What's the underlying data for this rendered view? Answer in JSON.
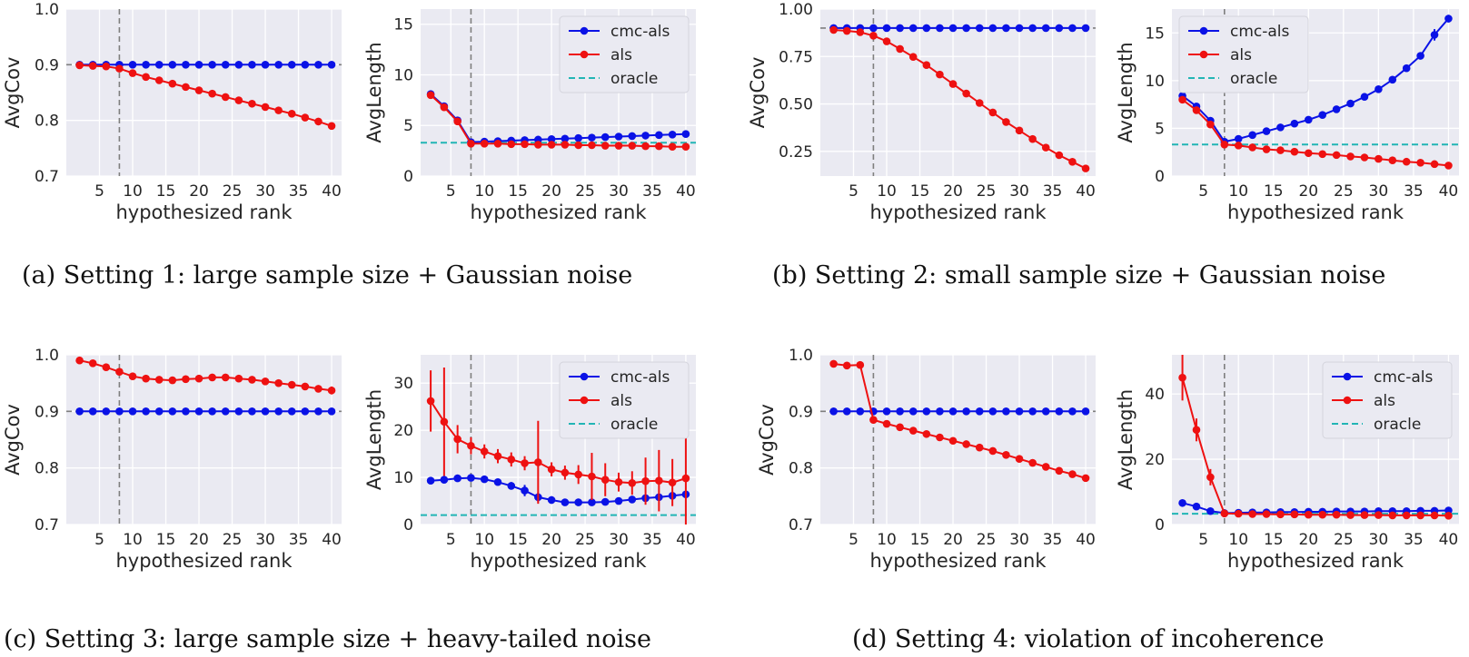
{
  "colors": {
    "cmc": "#0a12e6",
    "als": "#ee1111",
    "oracle": "#22b5b5",
    "panel": "#eaeaf2",
    "grid": "#ffffff",
    "ref": "#7f7f7f"
  },
  "captions": [
    "(a) Setting 1: large sample size + Gaussian noise",
    "(b) Setting 2: small sample size + Gaussian noise",
    "(c) Setting 3: large sample size + heavy-tailed noise",
    "(d) Setting 4: violation of incoherence"
  ],
  "chart_data": [
    {
      "id": "a-cov",
      "type": "line",
      "xlabel": "hypothesized rank",
      "ylabel": "AvgCov",
      "xlim": [
        0,
        41.5
      ],
      "ylim": [
        0.7,
        1.0
      ],
      "xticks": [
        5,
        10,
        15,
        20,
        25,
        30,
        35,
        40
      ],
      "yticks": [
        0.7,
        0.8,
        0.9,
        1.0
      ],
      "ytick_labels": [
        "0.7",
        "0.8",
        "0.9",
        "1.0"
      ],
      "x": [
        2,
        4,
        6,
        8,
        10,
        12,
        14,
        16,
        18,
        20,
        22,
        24,
        26,
        28,
        30,
        32,
        34,
        36,
        38,
        40
      ],
      "ref_h": 0.9,
      "ref_v": 8,
      "series": [
        {
          "name": "cmc-als",
          "color_key": "cmc",
          "values": [
            0.9,
            0.9,
            0.9,
            0.9,
            0.9,
            0.9,
            0.9,
            0.9,
            0.9,
            0.9,
            0.9,
            0.9,
            0.9,
            0.9,
            0.9,
            0.9,
            0.9,
            0.9,
            0.9,
            0.9
          ]
        },
        {
          "name": "als",
          "color_key": "als",
          "values": [
            0.899,
            0.898,
            0.897,
            0.893,
            0.885,
            0.878,
            0.872,
            0.866,
            0.86,
            0.854,
            0.848,
            0.842,
            0.836,
            0.83,
            0.824,
            0.818,
            0.812,
            0.805,
            0.798,
            0.79
          ]
        }
      ]
    },
    {
      "id": "a-len",
      "type": "line",
      "xlabel": "hypothesized rank",
      "ylabel": "AvgLength",
      "xlim": [
        0.5,
        41.5
      ],
      "ylim": [
        0,
        16.5
      ],
      "xticks": [
        5,
        10,
        15,
        20,
        25,
        30,
        35,
        40
      ],
      "yticks": [
        0,
        5,
        10,
        15
      ],
      "ytick_labels": [
        "0",
        "5",
        "10",
        "15"
      ],
      "x": [
        2,
        4,
        6,
        8,
        10,
        12,
        14,
        16,
        18,
        20,
        22,
        24,
        26,
        28,
        30,
        32,
        34,
        36,
        38,
        40
      ],
      "ref_v": 8,
      "oracle": 3.3,
      "legend": {
        "loc": "top-right",
        "entries": [
          "cmc-als",
          "als",
          "oracle"
        ]
      },
      "series": [
        {
          "name": "cmc-als",
          "color_key": "cmc",
          "values": [
            8.1,
            6.9,
            5.5,
            3.35,
            3.4,
            3.45,
            3.5,
            3.55,
            3.6,
            3.65,
            3.7,
            3.75,
            3.8,
            3.85,
            3.9,
            3.95,
            4.0,
            4.05,
            4.1,
            4.15
          ]
        },
        {
          "name": "als",
          "color_key": "als",
          "values": [
            8.0,
            6.8,
            5.4,
            3.2,
            3.2,
            3.2,
            3.15,
            3.15,
            3.1,
            3.1,
            3.1,
            3.05,
            3.05,
            3.0,
            3.0,
            3.0,
            2.95,
            2.95,
            2.9,
            2.9
          ]
        }
      ]
    },
    {
      "id": "b-cov",
      "type": "line",
      "xlabel": "hypothesized rank",
      "ylabel": "AvgCov",
      "xlim": [
        0,
        41.5
      ],
      "ylim": [
        0.12,
        1.0
      ],
      "xticks": [
        5,
        10,
        15,
        20,
        25,
        30,
        35,
        40
      ],
      "yticks": [
        0.25,
        0.5,
        0.75,
        1.0
      ],
      "ytick_labels": [
        "0.25",
        "0.50",
        "0.75",
        "1.00"
      ],
      "x": [
        2,
        4,
        6,
        8,
        10,
        12,
        14,
        16,
        18,
        20,
        22,
        24,
        26,
        28,
        30,
        32,
        34,
        36,
        38,
        40
      ],
      "ref_h": 0.9,
      "ref_v": 8,
      "series": [
        {
          "name": "cmc-als",
          "color_key": "cmc",
          "values": [
            0.9,
            0.9,
            0.9,
            0.9,
            0.9,
            0.9,
            0.9,
            0.9,
            0.9,
            0.9,
            0.9,
            0.9,
            0.9,
            0.9,
            0.9,
            0.9,
            0.9,
            0.9,
            0.9,
            0.9
          ]
        },
        {
          "name": "als",
          "color_key": "als",
          "values": [
            0.89,
            0.885,
            0.878,
            0.86,
            0.83,
            0.79,
            0.748,
            0.705,
            0.655,
            0.605,
            0.555,
            0.505,
            0.455,
            0.405,
            0.36,
            0.315,
            0.27,
            0.23,
            0.195,
            0.16
          ]
        }
      ]
    },
    {
      "id": "b-len",
      "type": "line",
      "xlabel": "hypothesized rank",
      "ylabel": "AvgLength",
      "xlim": [
        0.5,
        41.5
      ],
      "ylim": [
        0,
        17.5
      ],
      "xticks": [
        5,
        10,
        15,
        20,
        25,
        30,
        35,
        40
      ],
      "yticks": [
        0,
        5,
        10,
        15
      ],
      "ytick_labels": [
        "0",
        "5",
        "10",
        "15"
      ],
      "x": [
        2,
        4,
        6,
        8,
        10,
        12,
        14,
        16,
        18,
        20,
        22,
        24,
        26,
        28,
        30,
        32,
        34,
        36,
        38,
        40
      ],
      "ref_v": 8,
      "oracle": 3.3,
      "legend": {
        "loc": "top-left",
        "entries": [
          "cmc-als",
          "als",
          "oracle"
        ]
      },
      "series": [
        {
          "name": "cmc-als",
          "color_key": "cmc",
          "values": [
            8.4,
            7.3,
            5.8,
            3.6,
            3.9,
            4.3,
            4.7,
            5.1,
            5.5,
            5.9,
            6.4,
            7.0,
            7.6,
            8.3,
            9.1,
            10.1,
            11.3,
            12.6,
            14.8,
            16.5
          ],
          "err": [
            0.2,
            0.2,
            0.2,
            0.2,
            0.2,
            0.2,
            0.2,
            0.2,
            0.2,
            0.2,
            0.2,
            0.2,
            0.2,
            0.2,
            0.2,
            0.3,
            0.3,
            0.3,
            0.6,
            0.4
          ]
        },
        {
          "name": "als",
          "color_key": "als",
          "values": [
            8.0,
            6.9,
            5.4,
            3.3,
            3.2,
            3.0,
            2.8,
            2.7,
            2.55,
            2.4,
            2.3,
            2.2,
            2.05,
            1.95,
            1.8,
            1.65,
            1.5,
            1.4,
            1.25,
            1.1
          ]
        }
      ]
    },
    {
      "id": "c-cov",
      "type": "line",
      "xlabel": "hypothesized rank",
      "ylabel": "AvgCov",
      "xlim": [
        0,
        41.5
      ],
      "ylim": [
        0.7,
        1.0
      ],
      "xticks": [
        5,
        10,
        15,
        20,
        25,
        30,
        35,
        40
      ],
      "yticks": [
        0.7,
        0.8,
        0.9,
        1.0
      ],
      "ytick_labels": [
        "0.7",
        "0.8",
        "0.9",
        "1.0"
      ],
      "x": [
        2,
        4,
        6,
        8,
        10,
        12,
        14,
        16,
        18,
        20,
        22,
        24,
        26,
        28,
        30,
        32,
        34,
        36,
        38,
        40
      ],
      "ref_h": 0.9,
      "ref_v": 8,
      "series": [
        {
          "name": "cmc-als",
          "color_key": "cmc",
          "values": [
            0.9,
            0.9,
            0.9,
            0.9,
            0.9,
            0.9,
            0.9,
            0.9,
            0.9,
            0.9,
            0.9,
            0.9,
            0.9,
            0.9,
            0.9,
            0.9,
            0.9,
            0.9,
            0.9,
            0.9
          ]
        },
        {
          "name": "als",
          "color_key": "als",
          "values": [
            0.99,
            0.985,
            0.978,
            0.97,
            0.962,
            0.958,
            0.956,
            0.955,
            0.957,
            0.958,
            0.96,
            0.96,
            0.958,
            0.956,
            0.953,
            0.95,
            0.947,
            0.944,
            0.94,
            0.937
          ],
          "err": [
            0.002,
            0.002,
            0.002,
            0.002,
            0.003,
            0.004,
            0.004,
            0.004,
            0.006,
            0.005,
            0.004,
            0.004,
            0.004,
            0.004,
            0.004,
            0.004,
            0.004,
            0.004,
            0.006,
            0.007
          ]
        }
      ]
    },
    {
      "id": "c-len",
      "type": "line",
      "xlabel": "hypothesized rank",
      "ylabel": "AvgLength",
      "xlim": [
        0.5,
        41.5
      ],
      "ylim": [
        0,
        36
      ],
      "xticks": [
        5,
        10,
        15,
        20,
        25,
        30,
        35,
        40
      ],
      "yticks": [
        0,
        10,
        20,
        30
      ],
      "ytick_labels": [
        "0",
        "10",
        "20",
        "30"
      ],
      "x": [
        2,
        4,
        6,
        8,
        10,
        12,
        14,
        16,
        18,
        20,
        22,
        24,
        26,
        28,
        30,
        32,
        34,
        36,
        38,
        40
      ],
      "ref_v": 8,
      "oracle": 2.0,
      "legend": {
        "loc": "top-right",
        "entries": [
          "cmc-als",
          "als",
          "oracle"
        ]
      },
      "series": [
        {
          "name": "cmc-als",
          "color_key": "cmc",
          "values": [
            9.3,
            9.5,
            9.8,
            9.9,
            9.6,
            9.0,
            8.2,
            7.2,
            5.8,
            5.2,
            4.7,
            4.7,
            4.7,
            4.8,
            5.0,
            5.3,
            5.6,
            5.8,
            6.1,
            6.4
          ],
          "err": [
            0.3,
            0.3,
            0.3,
            0.4,
            0.4,
            0.5,
            0.8,
            1.2,
            1.0,
            0.8,
            0.5,
            0.4,
            0.4,
            0.4,
            0.4,
            0.4,
            0.5,
            0.5,
            0.5,
            0.6
          ]
        },
        {
          "name": "als",
          "color_key": "als",
          "values": [
            26.2,
            21.8,
            18.1,
            16.7,
            15.5,
            14.5,
            13.8,
            13.0,
            13.2,
            11.7,
            11.0,
            10.6,
            10.2,
            9.5,
            9.0,
            8.8,
            9.2,
            9.3,
            8.9,
            9.8
          ],
          "err": [
            6.5,
            11.5,
            3.0,
            1.8,
            1.5,
            1.5,
            1.5,
            1.5,
            8.8,
            1.5,
            1.5,
            2.0,
            5.0,
            3.5,
            2.0,
            2.5,
            5.0,
            6.5,
            5.0,
            13.5
          ]
        }
      ]
    },
    {
      "id": "d-cov",
      "type": "line",
      "xlabel": "hypothesized rank",
      "ylabel": "AvgCov",
      "xlim": [
        0,
        41.5
      ],
      "ylim": [
        0.7,
        1.0
      ],
      "xticks": [
        5,
        10,
        15,
        20,
        25,
        30,
        35,
        40
      ],
      "yticks": [
        0.7,
        0.8,
        0.9,
        1.0
      ],
      "ytick_labels": [
        "0.7",
        "0.8",
        "0.9",
        "1.0"
      ],
      "x": [
        2,
        4,
        6,
        8,
        10,
        12,
        14,
        16,
        18,
        20,
        22,
        24,
        26,
        28,
        30,
        32,
        34,
        36,
        38,
        40
      ],
      "ref_h": 0.9,
      "ref_v": 8,
      "series": [
        {
          "name": "cmc-als",
          "color_key": "cmc",
          "values": [
            0.9,
            0.9,
            0.9,
            0.9,
            0.9,
            0.9,
            0.9,
            0.9,
            0.9,
            0.9,
            0.9,
            0.9,
            0.9,
            0.9,
            0.9,
            0.9,
            0.9,
            0.9,
            0.9,
            0.9
          ]
        },
        {
          "name": "als",
          "color_key": "als",
          "values": [
            0.984,
            0.981,
            0.982,
            0.885,
            0.878,
            0.872,
            0.866,
            0.86,
            0.854,
            0.848,
            0.842,
            0.836,
            0.83,
            0.823,
            0.816,
            0.809,
            0.802,
            0.795,
            0.789,
            0.782
          ]
        }
      ]
    },
    {
      "id": "d-len",
      "type": "line",
      "xlabel": "hypothesized rank",
      "ylabel": "AvgLength",
      "xlim": [
        0.5,
        41.5
      ],
      "ylim": [
        0,
        52
      ],
      "xticks": [
        5,
        10,
        15,
        20,
        25,
        30,
        35,
        40
      ],
      "yticks": [
        0,
        20,
        40
      ],
      "ytick_labels": [
        "0",
        "20",
        "40"
      ],
      "x": [
        2,
        4,
        6,
        8,
        10,
        12,
        14,
        16,
        18,
        20,
        22,
        24,
        26,
        28,
        30,
        32,
        34,
        36,
        38,
        40
      ],
      "ref_v": 8,
      "oracle": 3.3,
      "legend": {
        "loc": "top-right",
        "entries": [
          "cmc-als",
          "als",
          "oracle"
        ]
      },
      "series": [
        {
          "name": "cmc-als",
          "color_key": "cmc",
          "values": [
            6.6,
            5.5,
            4.1,
            3.5,
            3.6,
            3.7,
            3.7,
            3.8,
            3.8,
            3.9,
            3.9,
            4.0,
            4.0,
            4.0,
            4.1,
            4.1,
            4.1,
            4.2,
            4.2,
            4.3
          ]
        },
        {
          "name": "als",
          "color_key": "als",
          "values": [
            45.0,
            29.0,
            14.5,
            3.4,
            3.3,
            3.2,
            3.2,
            3.1,
            3.1,
            3.0,
            3.0,
            3.0,
            2.9,
            2.9,
            2.9,
            2.8,
            2.8,
            2.8,
            2.8,
            2.7
          ],
          "err": [
            7.0,
            3.5,
            2.5,
            0.3,
            0.2,
            0.2,
            0.2,
            0.2,
            0.2,
            0.2,
            0.2,
            0.2,
            0.2,
            0.2,
            0.2,
            0.2,
            0.2,
            0.2,
            0.2,
            0.2
          ]
        }
      ]
    }
  ]
}
